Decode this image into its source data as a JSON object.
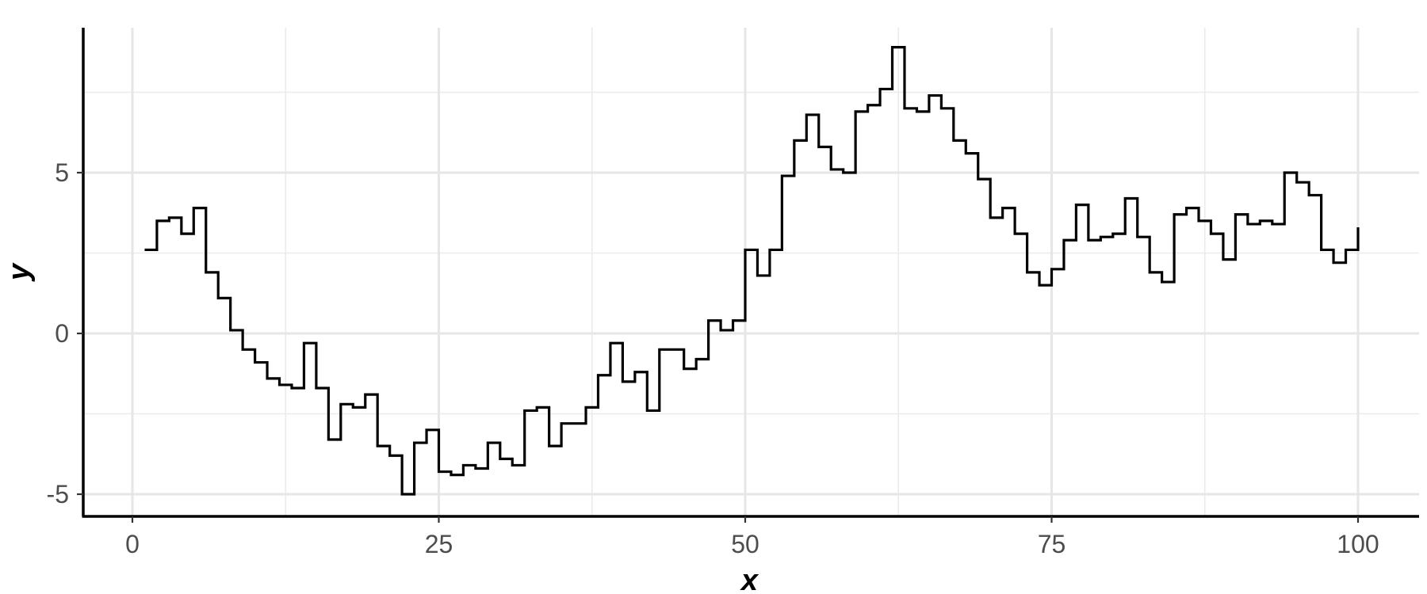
{
  "chart_data": {
    "type": "line",
    "step": "hv",
    "xlabel": "x",
    "ylabel": "y",
    "xlim": [
      -4,
      101
    ],
    "ylim": [
      -5.7,
      9.5
    ],
    "x_ticks": [
      0,
      25,
      50,
      75,
      100
    ],
    "y_ticks": [
      -5,
      0,
      5
    ],
    "x_minor_ticks": [
      12.5,
      37.5,
      62.5,
      87.5
    ],
    "y_minor_ticks": [
      -2.5,
      2.5,
      7.5
    ],
    "grid": true,
    "line_color": "#000000",
    "x": [
      1,
      2,
      3,
      4,
      5,
      6,
      7,
      8,
      9,
      10,
      11,
      12,
      13,
      14,
      15,
      16,
      17,
      18,
      19,
      20,
      21,
      22,
      23,
      24,
      25,
      26,
      27,
      28,
      29,
      30,
      31,
      32,
      33,
      34,
      35,
      36,
      37,
      38,
      39,
      40,
      41,
      42,
      43,
      44,
      45,
      46,
      47,
      48,
      49,
      50,
      51,
      52,
      53,
      54,
      55,
      56,
      57,
      58,
      59,
      60,
      61,
      62,
      63,
      64,
      65,
      66,
      67,
      68,
      69,
      70,
      71,
      72,
      73,
      74,
      75,
      76,
      77,
      78,
      79,
      80,
      81,
      82,
      83,
      84,
      85,
      86,
      87,
      88,
      89,
      90,
      91,
      92,
      93,
      94,
      95,
      96,
      97,
      98,
      99,
      100
    ],
    "y": [
      2.6,
      3.5,
      3.6,
      3.1,
      3.9,
      1.9,
      1.1,
      0.1,
      -0.5,
      -0.9,
      -1.4,
      -1.6,
      -1.7,
      -0.3,
      -1.7,
      -3.3,
      -2.2,
      -2.3,
      -1.9,
      -3.5,
      -3.8,
      -5.0,
      -3.4,
      -3.0,
      -4.3,
      -4.4,
      -4.1,
      -4.2,
      -3.4,
      -3.9,
      -4.1,
      -2.4,
      -2.3,
      -3.5,
      -2.8,
      -2.8,
      -2.3,
      -1.3,
      -0.3,
      -1.5,
      -1.2,
      -2.4,
      -0.5,
      -0.5,
      -1.1,
      -0.8,
      0.4,
      0.1,
      0.4,
      2.6,
      1.8,
      2.6,
      4.9,
      6.0,
      6.8,
      5.8,
      5.1,
      5.0,
      6.9,
      7.1,
      7.6,
      8.9,
      7.0,
      6.9,
      7.4,
      7.0,
      6.0,
      5.6,
      4.8,
      3.6,
      3.9,
      3.1,
      1.9,
      1.5,
      2.0,
      2.9,
      4.0,
      2.9,
      3.0,
      3.1,
      4.2,
      3.0,
      1.9,
      1.6,
      3.7,
      3.9,
      3.5,
      3.1,
      2.3,
      3.7,
      3.4,
      3.5,
      3.4,
      5.0,
      4.7,
      4.3,
      2.6,
      2.2,
      2.6,
      3.3
    ]
  }
}
